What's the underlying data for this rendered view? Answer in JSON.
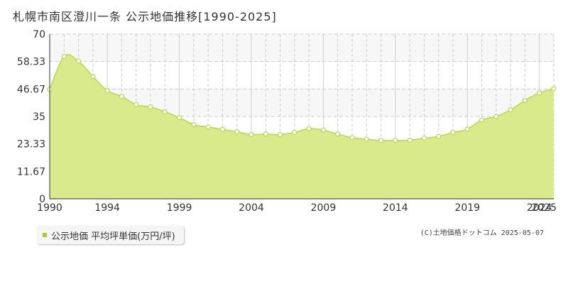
{
  "title": "札幌市南区澄川一条 公示地価推移[1990-2025]",
  "legend": {
    "label": "公示地価 平均坪単価(万円/坪)"
  },
  "credit": "(C)土地価格ドットコム 2025-05-07",
  "colors": {
    "fill": "#d9ea8c",
    "line": "#b8d652",
    "marker": "#ffffff",
    "grid": "#cccccc",
    "band": "#f7f7f7",
    "axis": "#333333"
  },
  "chart_data": {
    "type": "area",
    "title": "札幌市南区澄川一条 公示地価推移[1990-2025]",
    "xlabel": "",
    "ylabel": "",
    "xlim": [
      1990,
      2025
    ],
    "ylim": [
      0,
      70
    ],
    "yticks": [
      0,
      11.67,
      23.33,
      35,
      46.67,
      58.33,
      70
    ],
    "ytick_labels": [
      "0",
      "11.67",
      "23.33",
      "35",
      "46.67",
      "58.33",
      "70"
    ],
    "xticks": [
      1990,
      1994,
      1999,
      2004,
      2009,
      2014,
      2019,
      2024,
      2025
    ],
    "xtick_labels": [
      "1990",
      "1994",
      "1999",
      "2004",
      "2009",
      "2014",
      "2019",
      "2024",
      "2025"
    ],
    "grid": true,
    "legend_position": "bottom-left",
    "series": [
      {
        "name": "公示地価 平均坪単価(万円/坪)",
        "x": [
          1990,
          1991,
          1992,
          1993,
          1994,
          1995,
          1996,
          1997,
          1998,
          1999,
          2000,
          2001,
          2002,
          2003,
          2004,
          2005,
          2006,
          2007,
          2008,
          2009,
          2010,
          2011,
          2012,
          2013,
          2014,
          2015,
          2016,
          2017,
          2018,
          2019,
          2020,
          2021,
          2022,
          2023,
          2024,
          2025
        ],
        "values": [
          46.5,
          60.5,
          58.5,
          52,
          46,
          43.5,
          40,
          39,
          37,
          34.5,
          31.5,
          30.5,
          29.5,
          28.5,
          27.3,
          27.5,
          27.3,
          28.2,
          29.8,
          29.2,
          27.5,
          26,
          25.3,
          24.8,
          24.8,
          24.9,
          25.8,
          26.5,
          28.2,
          29.6,
          33.5,
          35,
          37.8,
          41.8,
          45,
          46.8
        ]
      }
    ]
  }
}
